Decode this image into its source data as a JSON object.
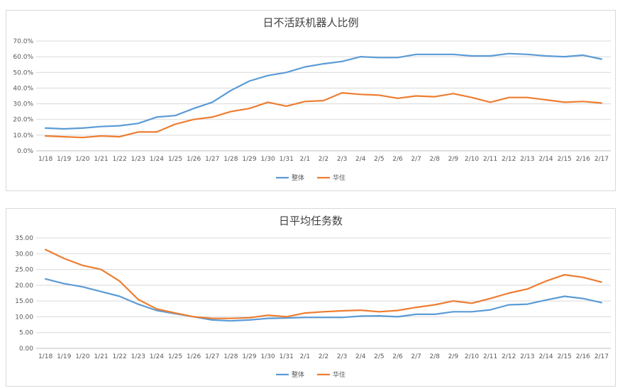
{
  "chart_data": [
    {
      "type": "line",
      "title": "日不活跃机器人比例",
      "categories": [
        "1/18",
        "1/19",
        "1/20",
        "1/21",
        "1/22",
        "1/23",
        "1/24",
        "1/25",
        "1/26",
        "1/27",
        "1/28",
        "1/29",
        "1/30",
        "1/31",
        "2/1",
        "2/2",
        "2/3",
        "2/4",
        "2/5",
        "2/6",
        "2/7",
        "2/8",
        "2/9",
        "2/10",
        "2/11",
        "2/12",
        "2/13",
        "2/14",
        "2/15",
        "2/16",
        "2/17"
      ],
      "yticks": [
        "0.0%",
        "10.0%",
        "20.0%",
        "30.0%",
        "40.0%",
        "50.0%",
        "60.0%",
        "70.0%"
      ],
      "ylim": [
        0,
        70
      ],
      "grid": true,
      "legend_position": "bottom",
      "series": [
        {
          "name": "整体",
          "color": "#5b9bd5",
          "values": [
            14.5,
            14,
            14.5,
            15.5,
            16,
            17.5,
            21.5,
            22.5,
            27,
            31,
            38.5,
            44.5,
            48,
            50,
            53.5,
            55.5,
            57,
            60,
            59.5,
            59.5,
            61.5,
            61.5,
            61.5,
            60.5,
            60.5,
            62,
            61.5,
            60.5,
            60,
            61,
            58.5
          ]
        },
        {
          "name": "华住",
          "color": "#ed7d31",
          "values": [
            9.5,
            9,
            8.5,
            9.5,
            9,
            12,
            12,
            17,
            20,
            21.5,
            25,
            27,
            31,
            28.5,
            31.5,
            32,
            37,
            36,
            35.5,
            33.5,
            35,
            34.5,
            36.5,
            34,
            31,
            34,
            34,
            32.5,
            31,
            31.5,
            30.5
          ]
        }
      ]
    },
    {
      "type": "line",
      "title": "日平均任务数",
      "categories": [
        "1/18",
        "1/19",
        "1/20",
        "1/21",
        "1/22",
        "1/23",
        "1/24",
        "1/25",
        "1/26",
        "1/27",
        "1/28",
        "1/29",
        "1/30",
        "1/31",
        "2/1",
        "2/2",
        "2/3",
        "2/4",
        "2/5",
        "2/6",
        "2/7",
        "2/8",
        "2/9",
        "2/10",
        "2/11",
        "2/12",
        "2/13",
        "2/14",
        "2/15",
        "2/16",
        "2/17"
      ],
      "yticks": [
        "0.00",
        "5.00",
        "10.00",
        "15.00",
        "20.00",
        "25.00",
        "30.00",
        "35.00"
      ],
      "ylim": [
        0,
        35
      ],
      "grid": true,
      "legend_position": "bottom",
      "series": [
        {
          "name": "整体",
          "color": "#5b9bd5",
          "values": [
            22,
            20.5,
            19.5,
            18,
            16.5,
            14,
            12,
            11,
            10,
            9,
            8.7,
            9,
            9.5,
            9.6,
            9.8,
            9.8,
            9.8,
            10.2,
            10.3,
            10,
            10.8,
            10.8,
            11.6,
            11.6,
            12.2,
            13.8,
            14,
            15.3,
            16.5,
            15.8,
            14.5
          ]
        },
        {
          "name": "华住",
          "color": "#ed7d31",
          "values": [
            31.3,
            28.5,
            26.3,
            25,
            21.3,
            15.5,
            12.5,
            11.2,
            10,
            9.5,
            9.5,
            9.7,
            10.5,
            10,
            11.2,
            11.6,
            11.9,
            12.1,
            11.6,
            12,
            13,
            13.8,
            15,
            14.3,
            15.8,
            17.5,
            18.8,
            21.3,
            23.3,
            22.5,
            21
          ]
        }
      ]
    }
  ]
}
